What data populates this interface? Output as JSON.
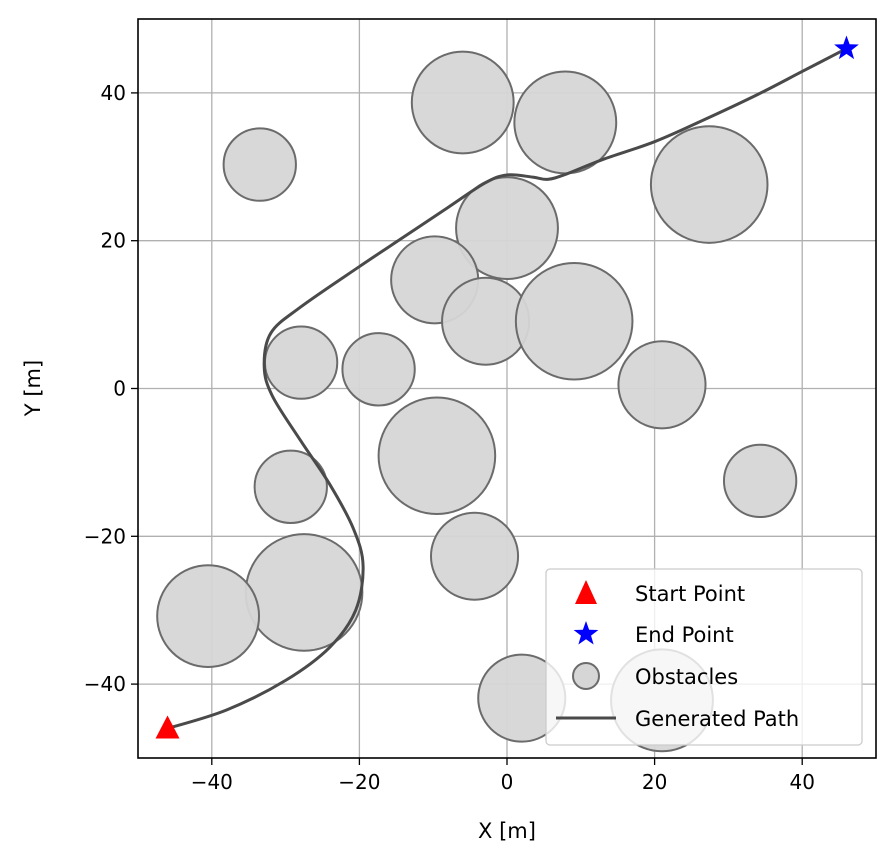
{
  "chart_data": {
    "type": "scatter",
    "title": "",
    "xlabel": "X [m]",
    "ylabel": "Y [m]",
    "xlim": [
      -50,
      50
    ],
    "ylim": [
      -50,
      50
    ],
    "xticks": [
      -40,
      -20,
      0,
      20,
      40
    ],
    "yticks": [
      -40,
      -20,
      0,
      20,
      40
    ],
    "xtick_labels": [
      "−40",
      "−20",
      "0",
      "20",
      "40"
    ],
    "ytick_labels": [
      "−40",
      "−20",
      "0",
      "20",
      "40"
    ],
    "grid": true,
    "legend_position": "lower-right",
    "start": {
      "name": "Start Point",
      "x": -46,
      "y": -46,
      "color": "#ff0000",
      "marker": "triangle"
    },
    "end": {
      "name": "End Point",
      "x": 46,
      "y": 46,
      "color": "#0000ff",
      "marker": "star"
    },
    "obstacles": {
      "name": "Obstacles",
      "color": "#d6d6d6",
      "edge_color": "#6b6b6b",
      "items": [
        {
          "x": -33.5,
          "y": 30.3,
          "r": 4.9
        },
        {
          "x": -6,
          "y": 38.7,
          "r": 6.9
        },
        {
          "x": 7.9,
          "y": 36,
          "r": 6.9
        },
        {
          "x": 27.4,
          "y": 27.6,
          "r": 7.9
        },
        {
          "x": 0,
          "y": 21.7,
          "r": 6.9
        },
        {
          "x": -9.8,
          "y": 14.7,
          "r": 5.9
        },
        {
          "x": -2.9,
          "y": 9.1,
          "r": 5.9
        },
        {
          "x": 9.1,
          "y": 9.1,
          "r": 7.9
        },
        {
          "x": -27.9,
          "y": 3.5,
          "r": 4.9
        },
        {
          "x": -17.4,
          "y": 2.6,
          "r": 4.9
        },
        {
          "x": 21,
          "y": 0.5,
          "r": 5.9
        },
        {
          "x": -9.5,
          "y": -9.1,
          "r": 7.9
        },
        {
          "x": -29.3,
          "y": -13.3,
          "r": 4.9
        },
        {
          "x": 34.3,
          "y": -12.5,
          "r": 4.9
        },
        {
          "x": -4.4,
          "y": -22.7,
          "r": 5.9
        },
        {
          "x": -27.5,
          "y": -27.6,
          "r": 7.9
        },
        {
          "x": -40.5,
          "y": -30.8,
          "r": 6.9
        },
        {
          "x": 2,
          "y": -41.9,
          "r": 5.9
        },
        {
          "x": 21,
          "y": -42.2,
          "r": 6.9
        }
      ]
    },
    "series": [
      {
        "name": "Generated Path",
        "color": "#4a4a4a",
        "x": [
          -46,
          -38,
          -30,
          -24,
          -20.5,
          -19.5,
          -20.8,
          -24,
          -28,
          -31.8,
          -32.9,
          -32,
          -28,
          -20,
          -14,
          -8,
          -3,
          0,
          3.5,
          5.5,
          8,
          13,
          20,
          27,
          34,
          40,
          46
        ],
        "y": [
          -46,
          -43.5,
          -39.5,
          -35,
          -30,
          -24,
          -19,
          -13,
          -7,
          -1,
          3,
          7.5,
          11,
          16.5,
          20.5,
          24.5,
          27.8,
          28.9,
          28.6,
          28.3,
          29,
          31,
          33.4,
          36.5,
          39.8,
          42.9,
          46
        ]
      }
    ]
  }
}
